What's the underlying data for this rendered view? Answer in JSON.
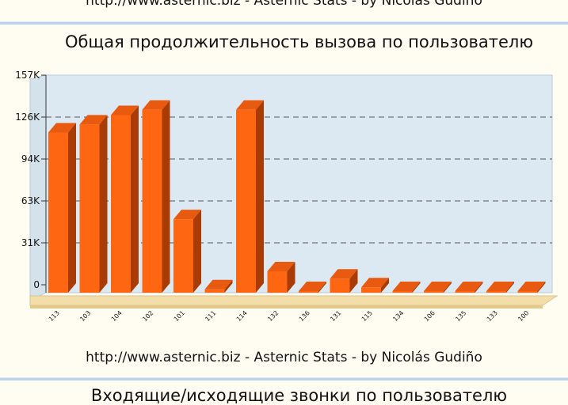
{
  "footer_credit": "http://www.asternic.biz - Asternic Stats - by Nicolás Gudiño",
  "titles": {
    "main": "Общая продолжительность вызова по пользователю",
    "next": "Входящие/исходящие звонки по пользователю"
  },
  "colors": {
    "background": "#fffdf2",
    "plot_area": "#dde9f2",
    "bar_front": "#ff6611",
    "bar_top": "#e85a10",
    "bar_side": "#a83c04",
    "floor": "#f3deaa",
    "divider": "#bcd3ec"
  },
  "chart_data": {
    "type": "bar",
    "title": "Общая продолжительность вызова по пользователю",
    "categories": [
      "113",
      "103",
      "104",
      "102",
      "101",
      "111",
      "114",
      "132",
      "136",
      "131",
      "115",
      "134",
      "106",
      "135",
      "133",
      "100"
    ],
    "values": [
      120000,
      126000,
      133000,
      137000,
      55000,
      2500,
      137000,
      16000,
      0,
      10500,
      4000,
      0,
      1000,
      0,
      0,
      0
    ],
    "y_ticks": [
      "0",
      "31K",
      "63K",
      "94K",
      "126K",
      "157K"
    ],
    "ylim": [
      0,
      157000
    ],
    "grid": true
  }
}
